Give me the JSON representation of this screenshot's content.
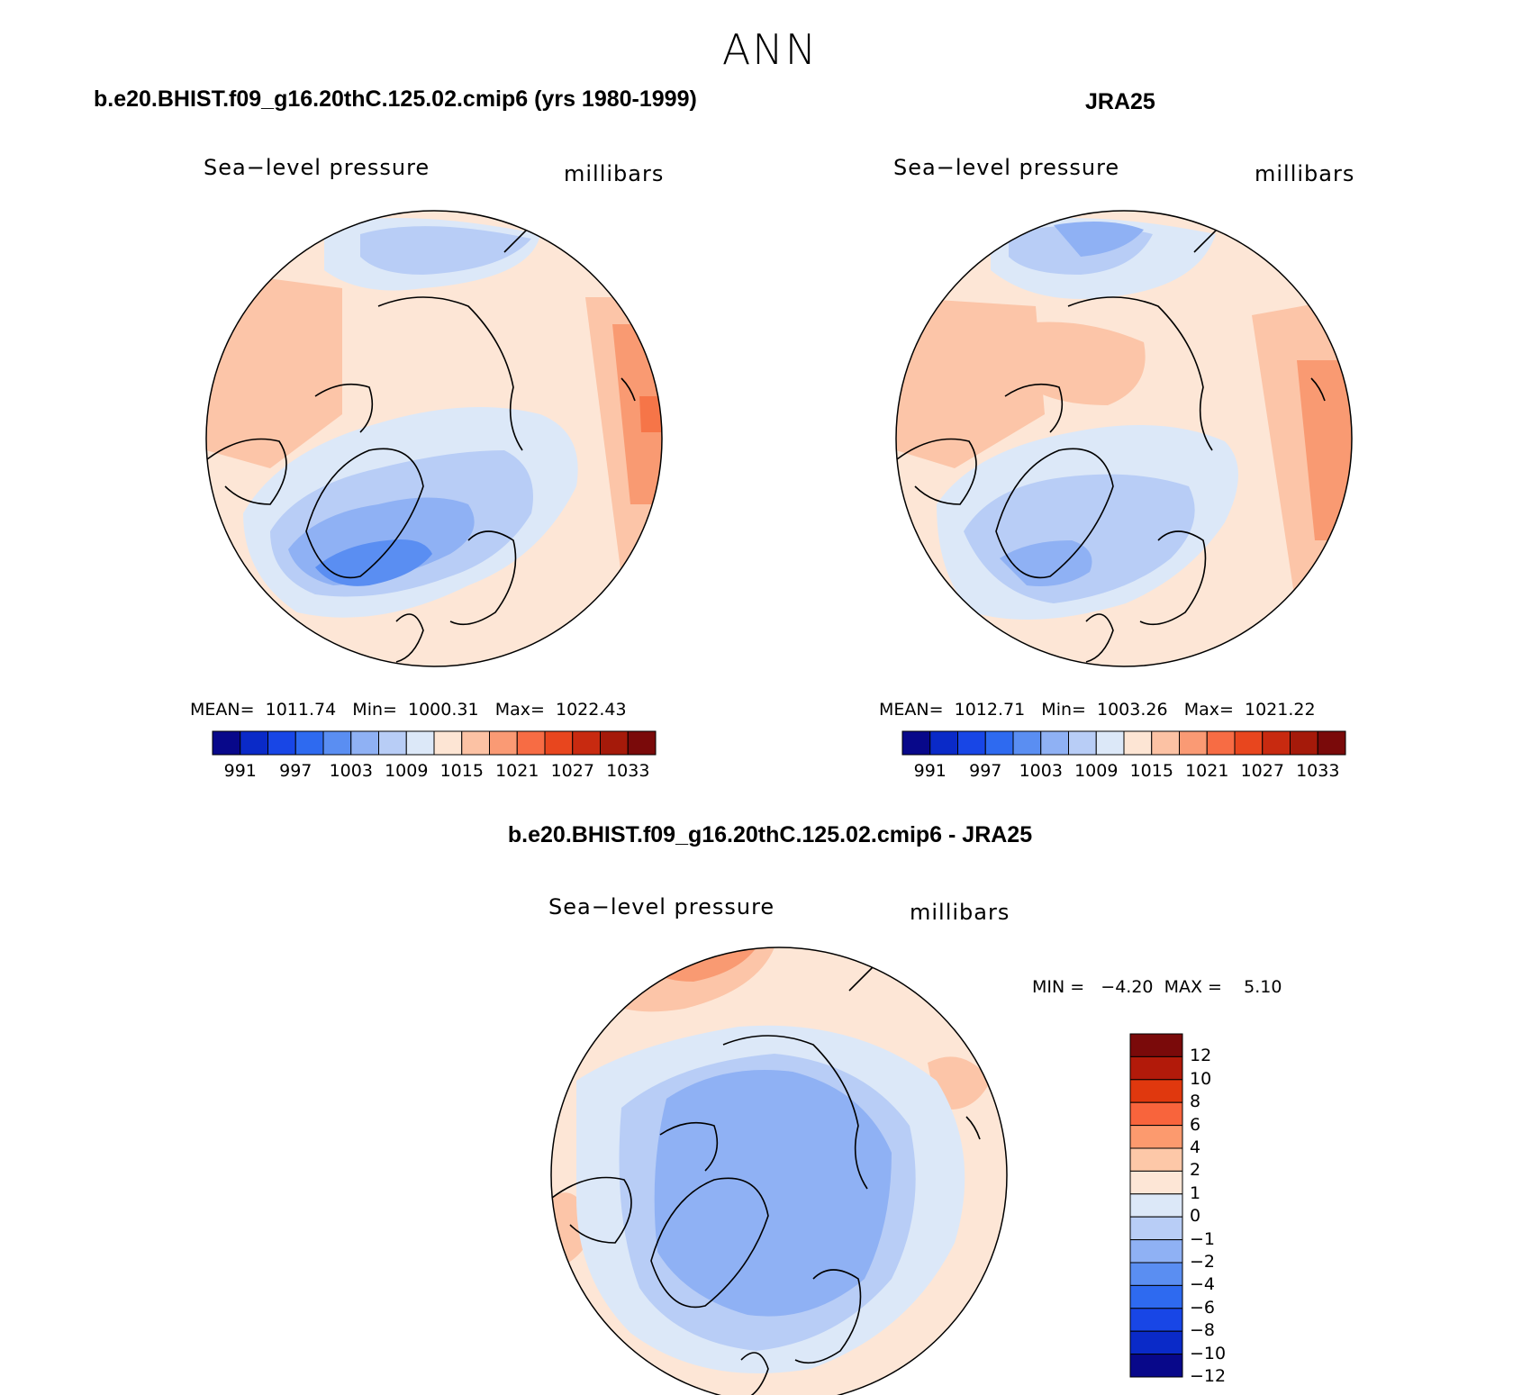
{
  "season": "ANN",
  "panels": [
    {
      "title": "b.e20.BHIST.f09_g16.20thC.125.02.cmip6 (yrs 1980-1999)",
      "variable": "Sea−level pressure",
      "units": "millibars",
      "stats": "MEAN=  1011.74   Min=  1000.31   Max=  1022.43"
    },
    {
      "title": "JRA25",
      "variable": "Sea−level pressure",
      "units": "millibars",
      "stats": "MEAN=  1012.71   Min=  1003.26   Max=  1021.22"
    },
    {
      "title": "b.e20.BHIST.f09_g16.20thC.125.02.cmip6 - JRA25",
      "variable": "Sea−level pressure",
      "units": "millibars",
      "stats": "MIN =   −4.20  MAX =    5.10"
    }
  ],
  "abs_colorbar": {
    "tick_labels": [
      "991",
      "997",
      "1003",
      "1009",
      "1015",
      "1021",
      "1027",
      "1033"
    ],
    "colors": [
      "#08088a",
      "#0a2ac8",
      "#1846e6",
      "#2e6af0",
      "#5a8ef2",
      "#8fb1f4",
      "#b8cdf6",
      "#dce8f8",
      "#fde5d4",
      "#fcc2a4",
      "#fa9a74",
      "#f76c44",
      "#e8461e",
      "#c82a10",
      "#a51a0a",
      "#7a0a0a"
    ]
  },
  "diff_colorbar": {
    "tick_labels": [
      "12",
      "10",
      "8",
      "6",
      "4",
      "2",
      "1",
      "0",
      "−1",
      "−2",
      "−4",
      "−6",
      "−8",
      "−10",
      "−12"
    ],
    "colors": [
      "#7a0a0a",
      "#b21a0a",
      "#e0380e",
      "#f8643c",
      "#fc9a6e",
      "#fdc8a8",
      "#fde6d6",
      "#dce8f8",
      "#b8cdf6",
      "#8fb1f4",
      "#5a8ef2",
      "#2e6af0",
      "#1846e6",
      "#0a2ac8",
      "#08088a"
    ]
  }
}
